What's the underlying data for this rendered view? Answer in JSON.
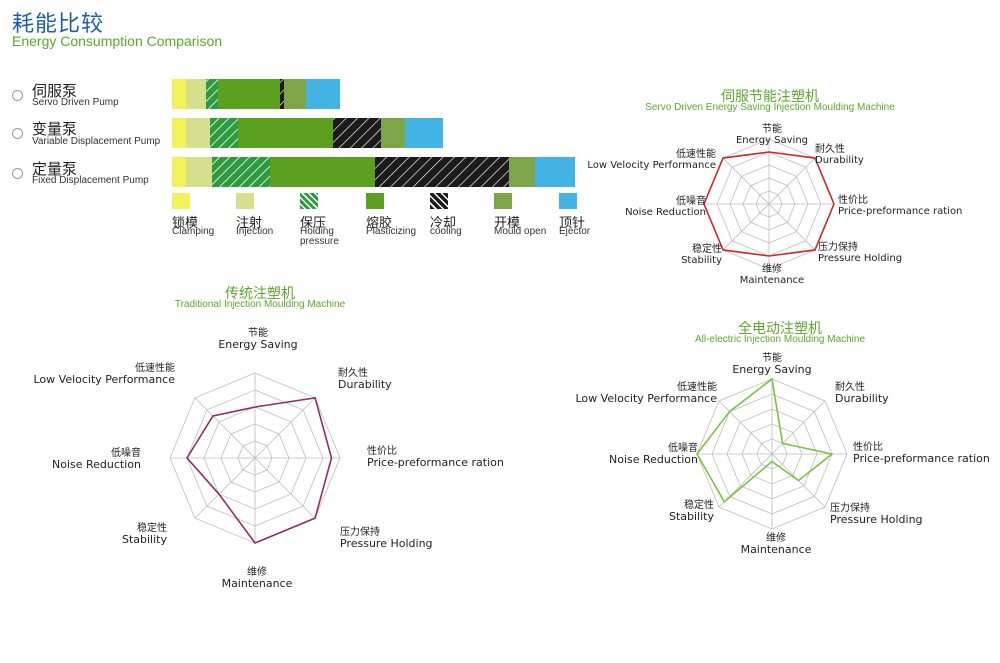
{
  "header": {
    "title_cn": "耗能比较",
    "title_en": "Energy Consumption Comparison"
  },
  "colors": {
    "Clamping": "#f4f25a",
    "Injection": "#d6e08c",
    "Holding pressure": "#2e9a3e",
    "Plasticizing": "#5ca01f",
    "cooling": "#1b1b1b",
    "Mould open": "#7da64a",
    "Ejector": "#43b3e3",
    "servo_line": "#cc2a2a",
    "traditional_line": "#8e2d6c",
    "electric_line": "#7bc242"
  },
  "pumps": [
    {
      "cn": "伺服泵",
      "en": "Servo Driven Pump",
      "dot": "#d94b4b"
    },
    {
      "cn": "变量泵",
      "en": "Variable Displacement Pump",
      "dot": "#f0d43a"
    },
    {
      "cn": "定量泵",
      "en": "Fixed Displacement Pump",
      "dot": "#3ea6de"
    }
  ],
  "legend": [
    {
      "cn": "锁模",
      "en": "Clamping"
    },
    {
      "cn": "注射",
      "en": "Injection"
    },
    {
      "cn": "保压",
      "en": "Holding pressure"
    },
    {
      "cn": "熔胶",
      "en": "Plasticizing"
    },
    {
      "cn": "冷却",
      "en": "cooling"
    },
    {
      "cn": "开模",
      "en": "Mould open"
    },
    {
      "cn": "顶针",
      "en": "Ejector"
    }
  ],
  "radars": [
    {
      "title_cn": "伺服节能注塑机",
      "title_en": "Servo Driven Energy Saving Injection Moulding Machine"
    },
    {
      "title_cn": "传统注塑机",
      "title_en": "Traditional Injection Moulding Machine"
    },
    {
      "title_cn": "全电动注塑机",
      "title_en": "All-electric Injection Moulding Machine"
    }
  ],
  "chart_data": [
    {
      "type": "bar",
      "orientation": "horizontal-stacked",
      "categories": [
        "Servo Driven Pump",
        "Variable Displacement Pump",
        "Fixed Displacement Pump"
      ],
      "series": [
        {
          "name": "Clamping",
          "values": [
            14,
            14,
            14
          ]
        },
        {
          "name": "Injection",
          "values": [
            20,
            24,
            26
          ]
        },
        {
          "name": "Holding pressure",
          "values": [
            12,
            28,
            58
          ]
        },
        {
          "name": "Plasticizing",
          "values": [
            62,
            95,
            105
          ]
        },
        {
          "name": "cooling",
          "values": [
            4,
            48,
            134
          ]
        },
        {
          "name": "Mould open",
          "values": [
            22,
            24,
            26
          ]
        },
        {
          "name": "Ejector",
          "values": [
            34,
            38,
            40
          ]
        }
      ]
    },
    {
      "type": "radar",
      "axes": [
        {
          "cn": "节能",
          "en": "Energy Saving"
        },
        {
          "cn": "耐久性",
          "en": "Durability"
        },
        {
          "cn": "性价比",
          "en": "Price-preformance ration"
        },
        {
          "cn": "压力保持",
          "en": "Pressure Holding"
        },
        {
          "cn": "维修",
          "en": "Maintenance"
        },
        {
          "cn": "稳定性",
          "en": "Stability"
        },
        {
          "cn": "低噪音",
          "en": "Noise Reduction"
        },
        {
          "cn": "低速性能",
          "en": "Low Velocity Performance"
        }
      ],
      "levels": 5,
      "max": 5,
      "values": [
        4,
        5,
        5,
        5,
        4,
        5,
        5,
        5
      ]
    },
    {
      "type": "radar",
      "axes": [
        {
          "cn": "节能",
          "en": "Energy Saving"
        },
        {
          "cn": "耐久性",
          "en": "Durability"
        },
        {
          "cn": "性价比",
          "en": "Price-preformance ration"
        },
        {
          "cn": "压力保持",
          "en": "Pressure Holding"
        },
        {
          "cn": "维修",
          "en": "Maintenance"
        },
        {
          "cn": "稳定性",
          "en": "Stability"
        },
        {
          "cn": "低噪音",
          "en": "Noise Reduction"
        },
        {
          "cn": "低速性能",
          "en": "Low Velocity Performance"
        }
      ],
      "levels": 5,
      "max": 5,
      "values": [
        3,
        5,
        4.5,
        5,
        5,
        3,
        4,
        3.5
      ]
    },
    {
      "type": "radar",
      "axes": [
        {
          "cn": "节能",
          "en": "Energy Saving"
        },
        {
          "cn": "耐久性",
          "en": "Durability"
        },
        {
          "cn": "性价比",
          "en": "Price-preformance ration"
        },
        {
          "cn": "压力保持",
          "en": "Pressure Holding"
        },
        {
          "cn": "维修",
          "en": "Maintenance"
        },
        {
          "cn": "稳定性",
          "en": "Stability"
        },
        {
          "cn": "低噪音",
          "en": "Noise Reduction"
        },
        {
          "cn": "低速性能",
          "en": "Low Velocity Performance"
        }
      ],
      "levels": 5,
      "max": 5,
      "values": [
        5,
        1,
        4,
        2.5,
        0.5,
        4.5,
        5,
        4
      ]
    }
  ]
}
